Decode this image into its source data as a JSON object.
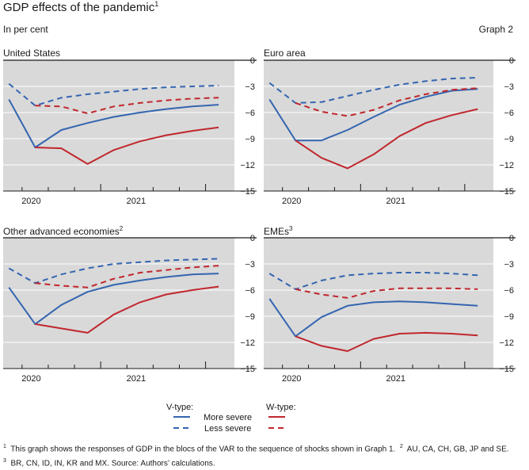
{
  "header": {
    "title": "GDP effects of the pandemic",
    "title_note": "1",
    "subtitle": "In per cent",
    "graph_label": "Graph 2"
  },
  "legend": {
    "v_label": "V-type:",
    "w_label": "W-type:",
    "more_label": "More severe",
    "less_label": "Less severe"
  },
  "colors": {
    "v_type": "#3465b0",
    "w_type": "#c0272d",
    "plot_bg": "#d9d9d9",
    "grid": "#ffffff",
    "zero_line": "#1a1a1a"
  },
  "footnote": {
    "n1": "1",
    "t1": "This graph shows the responses of GDP in the blocs of the VAR to the sequence of shocks shown in Graph 1.",
    "n2": "2",
    "t2": "AU, CA, CH, GB, JP and SE.",
    "n3": "3",
    "t3": "BR, CN, ID, IN, KR and MX. Source: Authors’ calculations."
  },
  "chart_data": [
    {
      "type": "line",
      "title": "United States",
      "title_note": "",
      "x": [
        0,
        1,
        2,
        3,
        4,
        5,
        6,
        7,
        8
      ],
      "xtick_labels": [
        "2020",
        "2021"
      ],
      "yticks": [
        0,
        -3,
        -6,
        -9,
        -12,
        -15
      ],
      "ylim": [
        -15,
        0
      ],
      "grid": true,
      "series": [
        {
          "name": "V-type More severe",
          "style": "solid",
          "color": "#3465b0",
          "values": [
            -4.5,
            -10.0,
            -8.0,
            -7.2,
            -6.5,
            -6.0,
            -5.6,
            -5.3,
            -5.1
          ]
        },
        {
          "name": "V-type Less severe",
          "style": "dashed",
          "color": "#3465b0",
          "values": [
            -2.7,
            -5.2,
            -4.3,
            -3.9,
            -3.6,
            -3.3,
            -3.1,
            -3.0,
            -2.9
          ]
        },
        {
          "name": "W-type More severe",
          "style": "solid",
          "color": "#c0272d",
          "values": [
            null,
            -10.0,
            -10.1,
            -11.9,
            -10.3,
            -9.3,
            -8.6,
            -8.1,
            -7.7
          ]
        },
        {
          "name": "W-type Less severe",
          "style": "dashed",
          "color": "#c0272d",
          "values": [
            null,
            -5.2,
            -5.3,
            -6.1,
            -5.3,
            -4.9,
            -4.6,
            -4.4,
            -4.3
          ]
        }
      ]
    },
    {
      "type": "line",
      "title": "Euro area",
      "title_note": "",
      "x": [
        0,
        1,
        2,
        3,
        4,
        5,
        6,
        7,
        8
      ],
      "xtick_labels": [
        "2020",
        "2021"
      ],
      "yticks": [
        0,
        -3,
        -6,
        -9,
        -12,
        -15
      ],
      "ylim": [
        -15,
        0
      ],
      "grid": true,
      "series": [
        {
          "name": "V-type More severe",
          "style": "solid",
          "color": "#3465b0",
          "values": [
            -4.5,
            -9.2,
            -9.2,
            -8.0,
            -6.5,
            -5.1,
            -4.2,
            -3.5,
            -3.3
          ]
        },
        {
          "name": "V-type Less severe",
          "style": "dashed",
          "color": "#3465b0",
          "values": [
            -2.6,
            -4.9,
            -4.8,
            -4.1,
            -3.4,
            -2.8,
            -2.4,
            -2.1,
            -2.0
          ]
        },
        {
          "name": "W-type More severe",
          "style": "solid",
          "color": "#c0272d",
          "values": [
            null,
            -9.2,
            -11.2,
            -12.4,
            -10.8,
            -8.7,
            -7.2,
            -6.3,
            -5.6
          ]
        },
        {
          "name": "W-type Less severe",
          "style": "dashed",
          "color": "#c0272d",
          "values": [
            null,
            -4.9,
            -5.9,
            -6.4,
            -5.7,
            -4.6,
            -3.9,
            -3.4,
            -3.2
          ]
        }
      ]
    },
    {
      "type": "line",
      "title": "Other advanced economies",
      "title_note": "2",
      "x": [
        0,
        1,
        2,
        3,
        4,
        5,
        6,
        7,
        8
      ],
      "xtick_labels": [
        "2020",
        "2021"
      ],
      "yticks": [
        0,
        -3,
        -6,
        -9,
        -12,
        -15
      ],
      "ylim": [
        -15,
        0
      ],
      "grid": true,
      "series": [
        {
          "name": "V-type More severe",
          "style": "solid",
          "color": "#3465b0",
          "values": [
            -5.7,
            -9.9,
            -7.7,
            -6.2,
            -5.4,
            -4.9,
            -4.5,
            -4.2,
            -4.1
          ]
        },
        {
          "name": "V-type Less severe",
          "style": "dashed",
          "color": "#3465b0",
          "values": [
            -3.5,
            -5.2,
            -4.2,
            -3.5,
            -3.0,
            -2.8,
            -2.6,
            -2.5,
            -2.4
          ]
        },
        {
          "name": "W-type More severe",
          "style": "solid",
          "color": "#c0272d",
          "values": [
            null,
            -9.9,
            -10.4,
            -10.9,
            -8.8,
            -7.4,
            -6.5,
            -6.0,
            -5.6
          ]
        },
        {
          "name": "W-type Less severe",
          "style": "dashed",
          "color": "#c0272d",
          "values": [
            null,
            -5.2,
            -5.5,
            -5.7,
            -4.7,
            -4.0,
            -3.7,
            -3.4,
            -3.2
          ]
        }
      ]
    },
    {
      "type": "line",
      "title": "EMEs",
      "title_note": "3",
      "x": [
        0,
        1,
        2,
        3,
        4,
        5,
        6,
        7,
        8
      ],
      "xtick_labels": [
        "2020",
        "2021"
      ],
      "yticks": [
        0,
        -3,
        -6,
        -9,
        -12,
        -15
      ],
      "ylim": [
        -15,
        0
      ],
      "grid": true,
      "series": [
        {
          "name": "V-type More severe",
          "style": "solid",
          "color": "#3465b0",
          "values": [
            -7.0,
            -11.3,
            -9.1,
            -7.8,
            -7.4,
            -7.3,
            -7.4,
            -7.6,
            -7.8
          ]
        },
        {
          "name": "V-type Less severe",
          "style": "dashed",
          "color": "#3465b0",
          "values": [
            -4.1,
            -5.9,
            -4.9,
            -4.3,
            -4.1,
            -4.0,
            -4.0,
            -4.1,
            -4.3
          ]
        },
        {
          "name": "W-type More severe",
          "style": "solid",
          "color": "#c0272d",
          "values": [
            null,
            -11.3,
            -12.4,
            -13.0,
            -11.6,
            -11.0,
            -10.9,
            -11.0,
            -11.2
          ]
        },
        {
          "name": "W-type Less severe",
          "style": "dashed",
          "color": "#c0272d",
          "values": [
            null,
            -5.9,
            -6.5,
            -6.9,
            -6.1,
            -5.8,
            -5.8,
            -5.8,
            -5.9
          ]
        }
      ]
    }
  ]
}
